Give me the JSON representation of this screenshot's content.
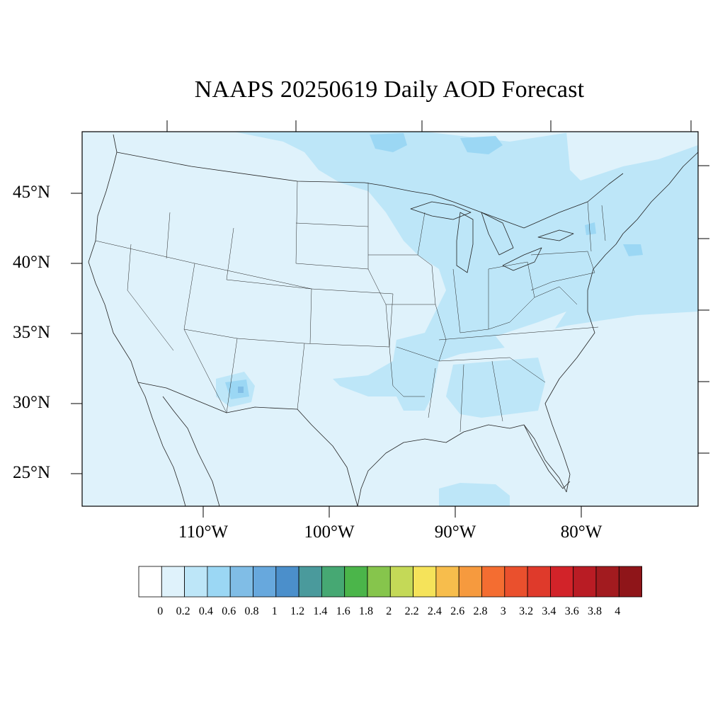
{
  "title": "NAAPS 20250619 Daily AOD Forecast",
  "map": {
    "lat_labels": [
      "45°N",
      "40°N",
      "35°N",
      "30°N",
      "25°N"
    ],
    "lon_labels": [
      "110°W",
      "100°W",
      "90°W",
      "80°W"
    ],
    "background_color": "#dff2fb"
  },
  "colorbar": {
    "tick_labels": [
      "0",
      "0.2",
      "0.4",
      "0.6",
      "0.8",
      "1",
      "1.2",
      "1.4",
      "1.6",
      "1.8",
      "2",
      "2.2",
      "2.4",
      "2.6",
      "2.8",
      "3",
      "3.2",
      "3.4",
      "3.6",
      "3.8",
      "4"
    ],
    "colors": [
      "#ffffff",
      "#dff2fb",
      "#bde6f8",
      "#9bd7f4",
      "#80bde6",
      "#67a8dd",
      "#4b8fcb",
      "#4a9a9c",
      "#46a873",
      "#4bb54a",
      "#86c54c",
      "#c4d957",
      "#f5e35a",
      "#f7bd4c",
      "#f69a3e",
      "#f46d31",
      "#ea502d",
      "#df3a2b",
      "#d22329",
      "#b91c24",
      "#a21b1f",
      "#8f1519"
    ]
  }
}
